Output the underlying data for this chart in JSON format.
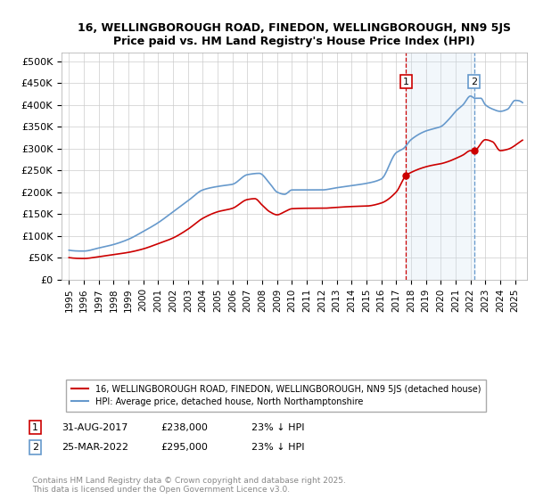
{
  "title1": "16, WELLINGBOROUGH ROAD, FINEDON, WELLINGBOROUGH, NN9 5JS",
  "title2": "Price paid vs. HM Land Registry's House Price Index (HPI)",
  "red_label": "16, WELLINGBOROUGH ROAD, FINEDON, WELLINGBOROUGH, NN9 5JS (detached house)",
  "blue_label": "HPI: Average price, detached house, North Northamptonshire",
  "footer": "Contains HM Land Registry data © Crown copyright and database right 2025.\nThis data is licensed under the Open Government Licence v3.0.",
  "sale1_year": 2017.67,
  "sale1_value": 238000,
  "sale2_year": 2022.25,
  "sale2_value": 295000,
  "ylim_min": 0,
  "ylim_max": 520000,
  "xlim_min": 1994.5,
  "xlim_max": 2025.8,
  "yticks": [
    0,
    50000,
    100000,
    150000,
    200000,
    250000,
    300000,
    350000,
    400000,
    450000,
    500000
  ],
  "ytick_labels": [
    "£0",
    "£50K",
    "£100K",
    "£150K",
    "£200K",
    "£250K",
    "£300K",
    "£350K",
    "£400K",
    "£450K",
    "£500K"
  ],
  "xticks": [
    1995,
    1996,
    1997,
    1998,
    1999,
    2000,
    2001,
    2002,
    2003,
    2004,
    2005,
    2006,
    2007,
    2008,
    2009,
    2010,
    2011,
    2012,
    2013,
    2014,
    2015,
    2016,
    2017,
    2018,
    2019,
    2020,
    2021,
    2022,
    2023,
    2024,
    2025
  ],
  "red_color": "#cc0000",
  "blue_color": "#6699cc",
  "dashed_color": "#cc0000",
  "shade_color": "#cce0f0",
  "background_color": "#ffffff",
  "grid_color": "#cccccc",
  "hpi_knots_x": [
    1995,
    1996,
    1997,
    1998,
    1999,
    2000,
    2001,
    2002,
    2003,
    2004,
    2005,
    2006,
    2007,
    2007.8,
    2008.5,
    2009,
    2009.5,
    2010,
    2011,
    2012,
    2013,
    2014,
    2015,
    2016,
    2017,
    2017.5,
    2018,
    2019,
    2019.5,
    2020,
    2020.5,
    2021,
    2021.5,
    2022,
    2022.3,
    2022.7,
    2023,
    2023.5,
    2024,
    2024.5,
    2025,
    2025.5
  ],
  "hpi_knots_y": [
    67000,
    65000,
    72000,
    80000,
    92000,
    110000,
    130000,
    155000,
    180000,
    205000,
    213000,
    218000,
    240000,
    243000,
    220000,
    200000,
    195000,
    205000,
    205000,
    205000,
    210000,
    215000,
    220000,
    230000,
    290000,
    300000,
    320000,
    340000,
    345000,
    350000,
    365000,
    385000,
    400000,
    420000,
    415000,
    415000,
    400000,
    390000,
    385000,
    390000,
    410000,
    405000
  ],
  "red_knots_x": [
    1995,
    1996,
    1997,
    1998,
    1999,
    2000,
    2001,
    2002,
    2003,
    2004,
    2005,
    2006,
    2007,
    2007.5,
    2008,
    2008.5,
    2009,
    2009.5,
    2010,
    2011,
    2012,
    2013,
    2014,
    2015,
    2016,
    2017,
    2017.67,
    2018,
    2019,
    2019.5,
    2020,
    2020.5,
    2021,
    2021.5,
    2022,
    2022.25,
    2023,
    2023.5,
    2024,
    2024.5,
    2025
  ],
  "red_knots_y": [
    50000,
    48000,
    52000,
    57000,
    62000,
    70000,
    82000,
    95000,
    115000,
    140000,
    155000,
    163000,
    183000,
    185000,
    170000,
    155000,
    148000,
    155000,
    162000,
    163000,
    163000,
    165000,
    167000,
    168000,
    175000,
    200000,
    238000,
    245000,
    258000,
    262000,
    265000,
    270000,
    277000,
    285000,
    295000,
    295000,
    320000,
    315000,
    295000,
    298000,
    307000
  ]
}
